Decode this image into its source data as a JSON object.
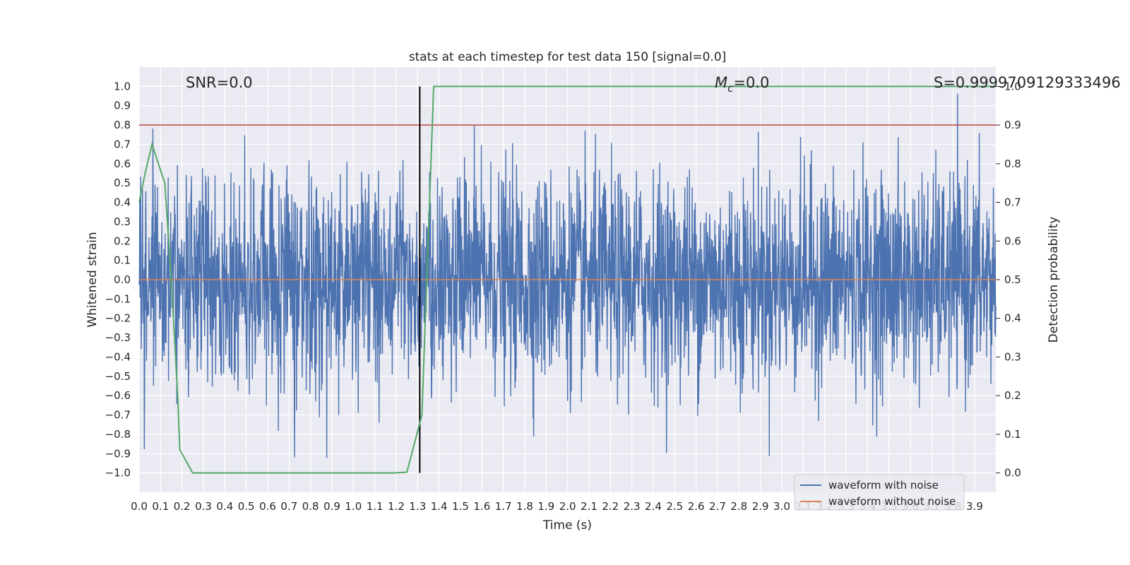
{
  "chart_data": {
    "type": "line",
    "title": "stats at each timestep for test data 150 [signal=0.0]",
    "xlabel": "Time (s)",
    "ylabel": "Whitened strain",
    "y2label": "Detection probability",
    "xlim": [
      0,
      3.999
    ],
    "ylim": [
      -1.1,
      1.1
    ],
    "y2lim": [
      -0.05,
      1.05
    ],
    "x_ticks": [
      0.0,
      0.1,
      0.2,
      0.3,
      0.4,
      0.5,
      0.6,
      0.7,
      0.8,
      0.9,
      1.0,
      1.1,
      1.2,
      1.3,
      1.4,
      1.5,
      1.6,
      1.7,
      1.8,
      1.9,
      2.0,
      2.1,
      2.2,
      2.3,
      2.4,
      2.5,
      2.6,
      2.7,
      2.8,
      2.9,
      3.0,
      3.1,
      3.2,
      3.3,
      3.4,
      3.5,
      3.6,
      3.7,
      3.8,
      3.9
    ],
    "x_tick_labels": [
      "0.0",
      "0.1",
      "0.2",
      "0.3",
      "0.4",
      "0.5",
      "0.6",
      "0.7",
      "0.8",
      "0.9",
      "1.0",
      "1.1",
      "1.2",
      "1.3",
      "1.4",
      "1.5",
      "1.6",
      "1.7",
      "1.8",
      "1.9",
      "2.0",
      "2.1",
      "2.2",
      "2.3",
      "2.4",
      "2.5",
      "2.6",
      "2.7",
      "2.8",
      "2.9",
      "3.0",
      "3.1",
      "3.2",
      "3.3",
      "3.4",
      "3.5",
      "3.6",
      "3.7",
      "3.8",
      "3.9"
    ],
    "y_ticks": [
      1.0,
      0.9,
      0.8,
      0.7,
      0.6,
      0.5,
      0.4,
      0.3,
      0.2,
      0.1,
      0.0,
      -0.1,
      -0.2,
      -0.3,
      -0.4,
      -0.5,
      -0.6,
      -0.7,
      -0.8,
      -0.9,
      -1.0
    ],
    "y_tick_labels": [
      "1.0",
      "0.9",
      "0.8",
      "0.7",
      "0.6",
      "0.5",
      "0.4",
      "0.3",
      "0.2",
      "0.1",
      "0.0",
      "−0.1",
      "−0.2",
      "−0.3",
      "−0.4",
      "−0.5",
      "−0.6",
      "−0.7",
      "−0.8",
      "−0.9",
      "−1.0"
    ],
    "y2_ticks": [
      1.0,
      0.9,
      0.8,
      0.7,
      0.6,
      0.5,
      0.4,
      0.3,
      0.2,
      0.1,
      0.0
    ],
    "y2_tick_labels": [
      "1.0",
      "0.9",
      "0.8",
      "0.7",
      "0.6",
      "0.5",
      "0.4",
      "0.3",
      "0.2",
      "0.1",
      "0.0"
    ],
    "annotations": {
      "snr": "SNR=0.0",
      "mc_symbol": "M",
      "mc_sub": "c",
      "mc_value": "=0.0",
      "s": "S=0.9999709129333496"
    },
    "threshold_line": {
      "y2": 0.9,
      "color": "#c44e52"
    },
    "vertical_line": {
      "x": 1.31,
      "color": "#000000"
    },
    "series": [
      {
        "name": "waveform with noise",
        "color": "#4c72b0",
        "axis": "left",
        "noise_envelope": {
          "positive_max": 1.0,
          "negative_min": -0.95
        }
      },
      {
        "name": "waveform without noise",
        "color": "#dd8452",
        "axis": "left",
        "constant_value": 0.0
      },
      {
        "color": "#55a868",
        "axis": "right",
        "x": [
          0.0,
          0.03,
          0.06,
          0.12,
          0.15,
          0.18,
          0.19,
          0.25,
          0.5,
          1.0,
          1.19,
          1.25,
          1.32,
          1.375,
          3.999
        ],
        "y": [
          0.7,
          0.78,
          0.85,
          0.75,
          0.5,
          0.2,
          0.06,
          0.0,
          0.0,
          0.0,
          0.0,
          0.002,
          0.15,
          1.0,
          1.0
        ]
      }
    ],
    "legend": {
      "placement": "bottom-right",
      "entries": [
        "waveform with noise",
        "waveform without noise"
      ]
    },
    "grid": true
  },
  "colors": {
    "plot_bg": "#eaeaf2",
    "grid": "#ffffff",
    "text": "#262626"
  }
}
